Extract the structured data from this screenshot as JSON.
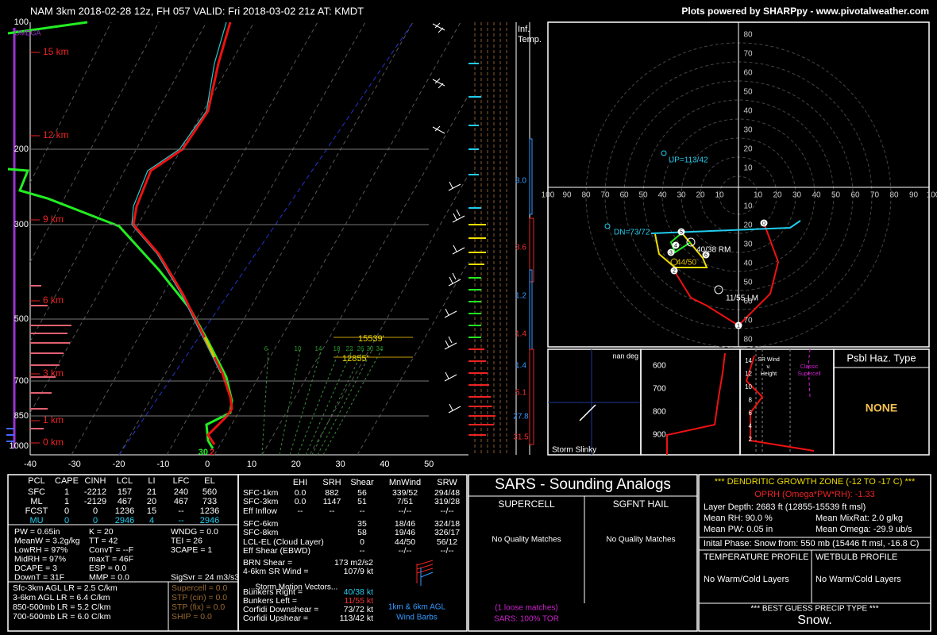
{
  "header": {
    "title": "NAM 3km 2018-02-28 12z, FH 057   VALID: Fri 2018-03-02 21z   AT: KMDT",
    "credit": "Plots powered by SHARPpy - www.pivotalweather.com"
  },
  "skewt": {
    "pressure_labels": [
      "100",
      "200",
      "300",
      "500",
      "700",
      "850",
      "1000"
    ],
    "temp_labels": [
      "-40",
      "-30",
      "-20",
      "-10",
      "0",
      "10",
      "20",
      "30",
      "40",
      "50"
    ],
    "height_labels": [
      "15 km",
      "12 km",
      "9 km",
      "6 km",
      "3 km",
      "1 km",
      "0 km"
    ],
    "omega_label": "OMEGA",
    "mixing_ratio_labels": [
      "6",
      "10",
      "14",
      "18",
      "22",
      "26",
      "30",
      "34"
    ],
    "dgz_top": "15539'",
    "dgz_bottom": "12855'",
    "sfc_temp": "30",
    "sfc_dew": "2"
  },
  "inf_temp": {
    "title": [
      "Inf.",
      "Temp."
    ],
    "values": [
      "3.0",
      "3.6",
      "1.2",
      "1.4",
      "1.4",
      "5.1",
      "27.8",
      "31.5"
    ]
  },
  "hodograph": {
    "up_labels": [
      "10",
      "20",
      "30",
      "40",
      "50",
      "60",
      "70",
      "80"
    ],
    "down_labels": [
      "10",
      "20",
      "30",
      "40",
      "50",
      "60",
      "70",
      "80"
    ],
    "left_labels": [
      "10",
      "20",
      "30",
      "40",
      "50",
      "60",
      "70",
      "80",
      "90",
      "100"
    ],
    "right_labels": [
      "10",
      "20",
      "30",
      "40",
      "50",
      "60",
      "70",
      "80",
      "90",
      "100"
    ],
    "annotations": {
      "up": "UP=113/42",
      "dn": "DN=73/72",
      "rm": "40/38 RM",
      "mean": "44/50",
      "lm": "11/55 LM"
    },
    "markers": [
      "0",
      "1",
      "2",
      "3",
      "4",
      "5",
      "6"
    ]
  },
  "slinky": {
    "direction": "nan deg",
    "title": "Storm Slinky"
  },
  "theta": {
    "labels": [
      "600",
      "700",
      "800",
      "900"
    ]
  },
  "sr_wind": {
    "labels": [
      "14",
      "12",
      "10",
      "8",
      "6",
      "4",
      "2"
    ],
    "title": [
      "SR Wind",
      "v.",
      "Height"
    ],
    "reference": [
      "Classic",
      "Supercell"
    ]
  },
  "hazard": {
    "title": "Psbl Haz. Type",
    "value": "NONE"
  },
  "thermo": {
    "header": [
      "PCL",
      "CAPE",
      "CINH",
      "LCL",
      "LI",
      "LFC",
      "EL"
    ],
    "rows": [
      [
        "SFC",
        "1",
        "-2212",
        "157",
        "21",
        "240",
        "560"
      ],
      [
        "ML",
        "1",
        "-2129",
        "467",
        "20",
        "467",
        "733"
      ],
      [
        "FCST",
        "0",
        "0",
        "1236",
        "15",
        "--",
        "1236"
      ],
      [
        "MU",
        "0",
        "0",
        "2946",
        "4",
        "--",
        "2946"
      ]
    ],
    "indices": [
      [
        "PW = 0.65in",
        "K = 20",
        "WNDG = 0.0"
      ],
      [
        "MeanW = 3.2g/kg",
        "TT = 42",
        "TEI = 26"
      ],
      [
        "LowRH = 97%",
        "ConvT = --F",
        "3CAPE = 1"
      ],
      [
        "MidRH = 97%",
        "maxT = 46F"
      ],
      [
        "DCAPE = 3",
        "ESP = 0.0"
      ],
      [
        "DownT = 31F",
        "MMP = 0.0",
        "SigSvr = 24 m3/s3"
      ]
    ],
    "lapse_rates": [
      "Sfc-3km AGL LR = 2.5 C/km",
      "3-6km AGL LR = 6.4 C/km",
      "850-500mb LR = 5.2 C/km",
      "700-500mb LR = 6.0 C/km"
    ],
    "composites": [
      "Supercell = 0.0",
      "STP (cin) = 0.0",
      "STP (fix) = 0.0",
      "SHIP = 0.0"
    ]
  },
  "kinematics": {
    "header": [
      "EHI",
      "SRH",
      "Shear",
      "MnWind",
      "SRW"
    ],
    "rows": [
      {
        "label": "SFC-1km",
        "ehi": "0.0",
        "srh": "882",
        "shear": "56",
        "mnwind": "339/52",
        "srw": "294/48"
      },
      {
        "label": "SFC-3km",
        "ehi": "0.0",
        "srh": "1147",
        "shear": "51",
        "mnwind": "7/51",
        "srw": "319/28"
      },
      {
        "label": "Eff Inflow",
        "ehi": "--",
        "srh": "--",
        "shear": "--",
        "mnwind": "--/--",
        "srw": "--/--"
      },
      {
        "label": "SFC-6km",
        "shear": "35",
        "mnwind": "18/46",
        "srw": "324/18"
      },
      {
        "label": "SFC-8km",
        "shear": "58",
        "mnwind": "19/46",
        "srw": "326/17"
      },
      {
        "label": "LCL-EL (Cloud Layer)",
        "shear": "0",
        "mnwind": "44/50",
        "srw": "56/12"
      },
      {
        "label": "Eff Shear (EBWD)",
        "shear": "--",
        "mnwind": "--/--",
        "srw": "--/--"
      }
    ],
    "brn": {
      "label": "BRN Shear =",
      "value": "173 m2/s2"
    },
    "sr46": {
      "label": "4-6km SR Wind =",
      "value": "107/9 kt"
    },
    "motion_title": "...Storm Motion Vectors...",
    "motion": [
      {
        "label": "Bunkers Right =",
        "value": "40/38 kt"
      },
      {
        "label": "Bunkers Left =",
        "value": "11/55 kt"
      },
      {
        "label": "Corfidi Downshear =",
        "value": "73/72 kt"
      },
      {
        "label": "Corfidi Upshear =",
        "value": "113/42 kt"
      }
    ],
    "barb_caption": [
      "1km & 6km AGL",
      "Wind Barbs"
    ]
  },
  "sars": {
    "title": "SARS - Sounding Analogs",
    "supercell": "SUPERCELL",
    "hail": "SGFNT HAIL",
    "supercell_matches": "No Quality Matches",
    "hail_matches": "No Quality Matches",
    "loose": "(1 loose matches)",
    "tor": "SARS: 100% TOR"
  },
  "dgz": {
    "title": "*** DENDRITIC GROWTH ZONE (-12 TO -17 C) ***",
    "oprh": "OPRH (Omega*PW*RH): -1.33",
    "depth": "Layer Depth: 2683 ft (12855-15539 ft msl)",
    "mean_rh": "Mean RH: 90.0 %",
    "mean_mixrat": "Mean MixRat: 2.0 g/kg",
    "mean_pw": "Mean PW: 0.05 in",
    "mean_omega": "Mean Omega: -29.9 ub/s",
    "phase": "Inital Phase: Snow from: 550 mb (15446 ft msl, -16.8 C)",
    "temp_profile": "TEMPERATURE PROFILE",
    "wetbulb_profile": "WETBULB PROFILE",
    "temp_layers": "No Warm/Cold Layers",
    "wetbulb_layers": "No Warm/Cold Layers",
    "precip_title": "*** BEST GUESS PRECIP TYPE ***",
    "precip": "Snow."
  }
}
